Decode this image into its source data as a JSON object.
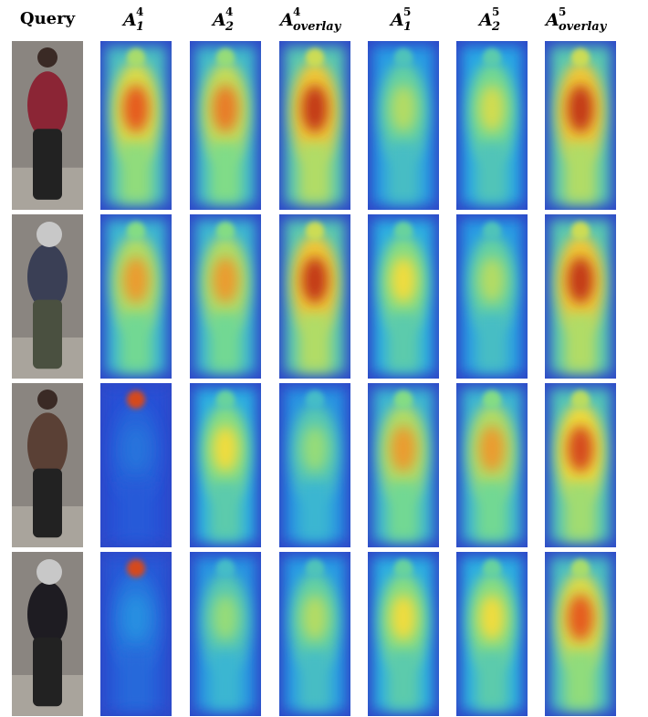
{
  "columns": [
    {
      "label": "Query"
    },
    {
      "base": "A",
      "subscript": "1",
      "superscript": "4"
    },
    {
      "base": "A",
      "subscript": "2",
      "superscript": "4"
    },
    {
      "base": "A",
      "subscript": "overlay",
      "superscript": "4"
    },
    {
      "base": "A",
      "subscript": "1",
      "superscript": "5"
    },
    {
      "base": "A",
      "subscript": "2",
      "superscript": "5"
    },
    {
      "base": "A",
      "subscript": "overlay",
      "superscript": "5"
    }
  ]
}
